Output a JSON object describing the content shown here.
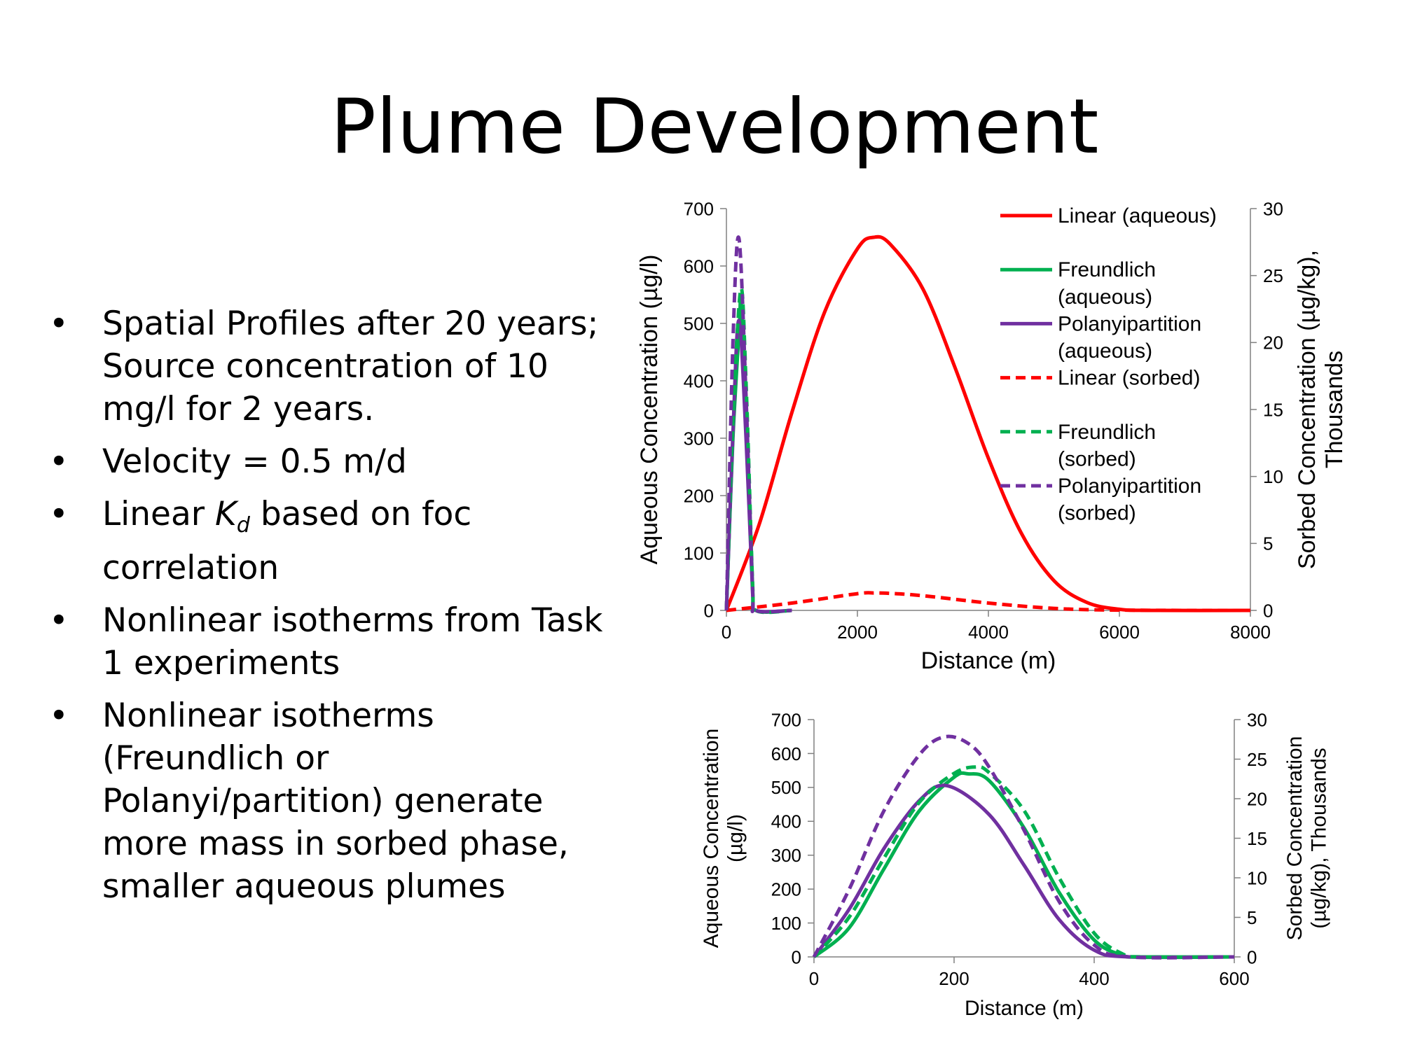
{
  "slide": {
    "title": "Plume Development",
    "bullets": [
      {
        "dot": "•",
        "text": "Spatial Profiles after 20 years; Source concentration of 10 mg/l for 2 years."
      },
      {
        "dot": "•",
        "text": "Velocity = 0.5 m/d"
      },
      {
        "dot": "•",
        "pre": "Linear ",
        "k": "K",
        "sub": "d",
        "post": " based on foc correlation"
      },
      {
        "dot": "•",
        "text": "Nonlinear isotherms from Task 1 experiments"
      },
      {
        "dot": "•",
        "text": "Nonlinear isotherms (Freundlich or Polanyi/partition) generate more mass in sorbed phase, smaller aqueous plumes"
      }
    ]
  },
  "colors": {
    "linear": "#ff0000",
    "freundlich": "#00b050",
    "polanyi": "#7030a0",
    "axis": "#808080"
  },
  "chart_data": [
    {
      "type": "line",
      "xlabel": "Distance (m)",
      "ylabel": "Aqueous Concentration (µg/l)",
      "y2label_lines": [
        "Sorbed Concentration (µg/kg),",
        "Thousands"
      ],
      "xlim": [
        0,
        8000
      ],
      "ylim": [
        0,
        700
      ],
      "y2lim": [
        0,
        30
      ],
      "xticks": [
        0,
        2000,
        4000,
        6000,
        8000
      ],
      "yticks": [
        0,
        100,
        200,
        300,
        400,
        500,
        600,
        700
      ],
      "y2ticks": [
        0,
        5,
        10,
        15,
        20,
        25,
        30
      ],
      "legend_position": "top-right",
      "legend": [
        {
          "lines": [
            "Linear (aqueous)"
          ],
          "color": "linear",
          "dashed": false
        },
        {
          "lines": [
            "Freundlich",
            "(aqueous)"
          ],
          "color": "freundlich",
          "dashed": false
        },
        {
          "lines": [
            "Polanyipartition",
            "(aqueous)"
          ],
          "color": "polanyi",
          "dashed": false
        },
        {
          "lines": [
            "Linear (sorbed)"
          ],
          "color": "linear",
          "dashed": true
        },
        {
          "lines": [
            "Freundlich",
            "(sorbed)"
          ],
          "color": "freundlich",
          "dashed": true
        },
        {
          "lines": [
            "Polanyipartition",
            "(sorbed)"
          ],
          "color": "polanyi",
          "dashed": true
        }
      ],
      "series": [
        {
          "name": "Linear (aqueous)",
          "color": "linear",
          "dashed": false,
          "axis": "y",
          "x": [
            0,
            500,
            1000,
            1500,
            2000,
            2250,
            2500,
            3000,
            3500,
            4000,
            4500,
            5000,
            5500,
            6000,
            6500,
            8000
          ],
          "y": [
            0,
            150,
            345,
            520,
            630,
            650,
            638,
            560,
            420,
            265,
            135,
            52,
            14,
            2,
            0,
            0
          ]
        },
        {
          "name": "Freundlich (aqueous)",
          "color": "freundlich",
          "dashed": false,
          "axis": "y",
          "x": [
            0,
            100,
            200,
            220,
            300,
            400,
            450,
            1000
          ],
          "y": [
            0,
            300,
            500,
            540,
            360,
            40,
            0,
            0
          ]
        },
        {
          "name": "Polanyipartition (aqueous)",
          "color": "polanyi",
          "dashed": false,
          "axis": "y",
          "x": [
            0,
            100,
            190,
            300,
            400,
            450,
            1000
          ],
          "y": [
            0,
            310,
            505,
            300,
            30,
            0,
            0
          ]
        },
        {
          "name": "Linear (sorbed)",
          "color": "linear",
          "dashed": true,
          "axis": "y2",
          "x": [
            0,
            1000,
            2000,
            2250,
            2500,
            3000,
            4000,
            5000,
            6000,
            8000
          ],
          "y": [
            0,
            0.55,
            1.25,
            1.3,
            1.27,
            1.1,
            0.55,
            0.15,
            0.02,
            0
          ]
        },
        {
          "name": "Freundlich (sorbed)",
          "color": "freundlich",
          "dashed": true,
          "axis": "y2",
          "x": [
            0,
            100,
            220,
            300,
            400,
            450,
            1000
          ],
          "y": [
            0,
            14,
            24,
            17,
            2,
            0,
            0
          ]
        },
        {
          "name": "Polanyipartition (sorbed)",
          "color": "polanyi",
          "dashed": true,
          "axis": "y2",
          "x": [
            0,
            100,
            190,
            300,
            400,
            450,
            1000
          ],
          "y": [
            0,
            20,
            27.8,
            16,
            1.5,
            0,
            0
          ]
        }
      ]
    },
    {
      "type": "line",
      "xlabel": "Distance (m)",
      "ylabel_lines": [
        "Aqueous Concentration",
        "(µg/l)"
      ],
      "y2label_lines": [
        "Sorbed Concentration",
        "(µg/kg), Thousands"
      ],
      "xlim": [
        0,
        600
      ],
      "ylim": [
        0,
        700
      ],
      "y2lim": [
        0,
        30
      ],
      "xticks": [
        0,
        200,
        400,
        600
      ],
      "yticks": [
        0,
        100,
        200,
        300,
        400,
        500,
        600,
        700
      ],
      "y2ticks": [
        0,
        5,
        10,
        15,
        20,
        25,
        30
      ],
      "series": [
        {
          "name": "Freundlich (aqueous)",
          "color": "freundlich",
          "dashed": false,
          "axis": "y",
          "x": [
            0,
            50,
            100,
            150,
            200,
            220,
            250,
            300,
            350,
            400,
            440,
            470,
            600
          ],
          "y": [
            0,
            85,
            260,
            430,
            530,
            540,
            520,
            380,
            190,
            50,
            5,
            0,
            0
          ]
        },
        {
          "name": "Polanyipartition (aqueous)",
          "color": "polanyi",
          "dashed": false,
          "axis": "y",
          "x": [
            0,
            50,
            100,
            150,
            190,
            250,
            300,
            350,
            400,
            450,
            600
          ],
          "y": [
            0,
            140,
            320,
            460,
            505,
            420,
            270,
            110,
            20,
            0,
            0
          ]
        },
        {
          "name": "Freundlich (sorbed)",
          "color": "freundlich",
          "dashed": true,
          "axis": "y2",
          "x": [
            0,
            50,
            100,
            150,
            200,
            230,
            250,
            300,
            350,
            400,
            440,
            470,
            600
          ],
          "y": [
            0,
            5,
            12.5,
            19.5,
            23.2,
            24,
            23.3,
            18.5,
            10,
            3,
            0.4,
            0,
            0
          ]
        },
        {
          "name": "Polanyipartition (sorbed)",
          "color": "polanyi",
          "dashed": true,
          "axis": "y2",
          "x": [
            0,
            50,
            100,
            150,
            185,
            220,
            250,
            300,
            350,
            400,
            450,
            600
          ],
          "y": [
            0,
            8.5,
            18.5,
            25.5,
            27.8,
            27,
            24,
            16,
            7,
            1.5,
            0,
            0
          ]
        }
      ]
    }
  ]
}
